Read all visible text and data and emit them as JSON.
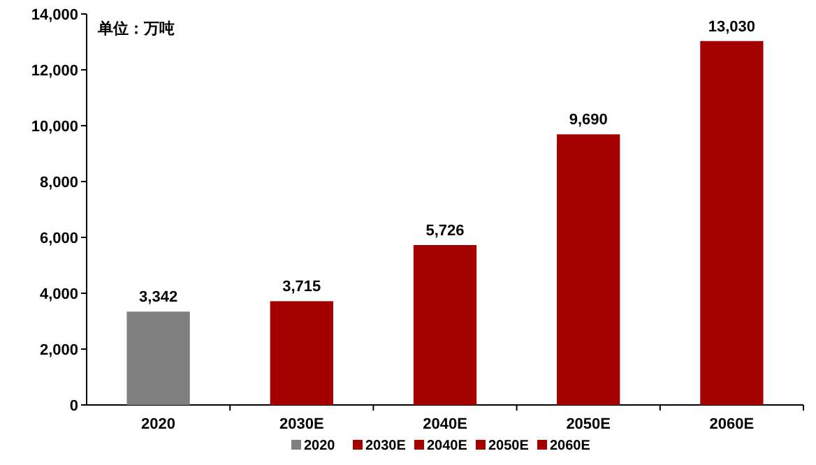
{
  "chart_data": {
    "type": "bar",
    "legend": "bottom",
    "grid": false,
    "annotations": [
      "单位：万吨"
    ],
    "categories": [
      "2020",
      "2030E",
      "2040E",
      "2050E",
      "2060E"
    ],
    "series": [
      {
        "name": "2020",
        "color": "#808080",
        "values": [
          3342,
          null,
          null,
          null,
          null
        ],
        "value_labels": [
          "3,342",
          null,
          null,
          null,
          null
        ]
      },
      {
        "name": "2030E",
        "color": "#a50000",
        "values": [
          null,
          3715,
          null,
          null,
          null
        ],
        "value_labels": [
          null,
          "3,715",
          null,
          null,
          null
        ]
      },
      {
        "name": "2040E",
        "color": "#a50000",
        "values": [
          null,
          null,
          5726,
          null,
          null
        ],
        "value_labels": [
          null,
          null,
          "5,726",
          null,
          null
        ]
      },
      {
        "name": "2050E",
        "color": "#a50000",
        "values": [
          null,
          null,
          null,
          9690,
          null
        ],
        "value_labels": [
          null,
          null,
          null,
          "9,690",
          null
        ]
      },
      {
        "name": "2060E",
        "color": "#a50000",
        "values": [
          null,
          null,
          null,
          null,
          13030
        ],
        "value_labels": [
          null,
          null,
          null,
          null,
          "13,030"
        ]
      }
    ],
    "ylim": [
      0,
      14000
    ],
    "yticks": [
      0,
      {
        "value": 2000,
        "label": "2,000"
      },
      {
        "value": 4000,
        "label": "4,000"
      },
      {
        "value": 6000,
        "label": "6,000"
      },
      {
        "value": 8000,
        "label": "8,000"
      },
      {
        "value": 10000,
        "label": "10,000"
      },
      {
        "value": 12000,
        "label": "12,000"
      },
      {
        "value": 14000,
        "label": "14,000"
      }
    ]
  }
}
